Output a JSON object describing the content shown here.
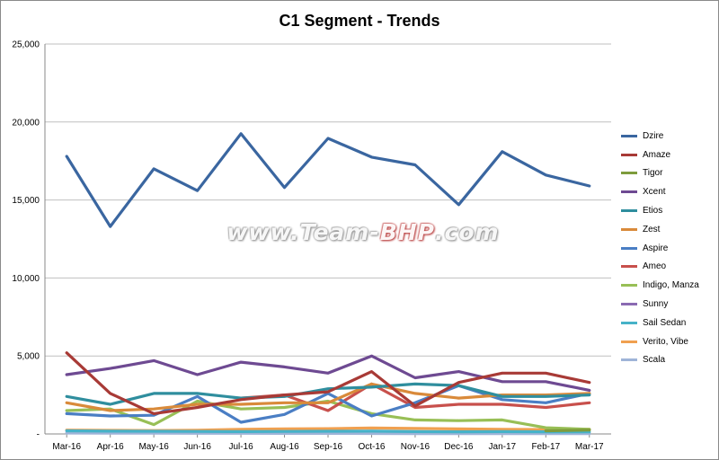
{
  "chart_data": {
    "type": "line",
    "title": "C1 Segment - Trends",
    "xlabel": "",
    "ylabel": "",
    "ylim": [
      0,
      25000
    ],
    "y_ticks": [
      "-",
      "5,000",
      "10,000",
      "15,000",
      "20,000",
      "25,000"
    ],
    "y_tick_values": [
      0,
      5000,
      10000,
      15000,
      20000,
      25000
    ],
    "grid": true,
    "legend_position": "right",
    "categories": [
      "Mar-16",
      "Apr-16",
      "May-16",
      "Jun-16",
      "Jul-16",
      "Aug-16",
      "Sep-16",
      "Oct-16",
      "Nov-16",
      "Dec-16",
      "Jan-17",
      "Feb-17",
      "Mar-17"
    ],
    "series": [
      {
        "name": "Dzire",
        "color": "#3a66a0",
        "values": [
          17800,
          13300,
          17000,
          15600,
          19250,
          15800,
          18950,
          17750,
          17250,
          14700,
          18100,
          16600,
          15900
        ]
      },
      {
        "name": "Amaze",
        "color": "#a83a36",
        "values": [
          5200,
          2600,
          1300,
          1700,
          2200,
          2500,
          2700,
          4000,
          1800,
          3300,
          3900,
          3900,
          3300
        ]
      },
      {
        "name": "Tigor",
        "color": "#7e9c3c",
        "values": [
          null,
          null,
          null,
          null,
          null,
          null,
          null,
          null,
          null,
          null,
          null,
          200,
          250
        ]
      },
      {
        "name": "Xcent",
        "color": "#6e4a92",
        "values": [
          3800,
          4200,
          4700,
          3800,
          4600,
          4300,
          3900,
          5000,
          3600,
          4000,
          3350,
          3350,
          2800
        ]
      },
      {
        "name": "Etios",
        "color": "#2f8e9e",
        "values": [
          2400,
          1900,
          2600,
          2600,
          2300,
          2400,
          2900,
          3000,
          3200,
          3100,
          2400,
          2400,
          2500
        ]
      },
      {
        "name": "Zest",
        "color": "#d98a3a",
        "values": [
          2000,
          1500,
          1600,
          1900,
          1900,
          2000,
          2000,
          3200,
          2600,
          2300,
          2500,
          2500,
          2600
        ]
      },
      {
        "name": "Aspire",
        "color": "#4a7ec4",
        "values": [
          1300,
          1150,
          1200,
          2400,
          750,
          1250,
          2600,
          1150,
          2000,
          3100,
          2200,
          2000,
          2600
        ]
      },
      {
        "name": "Ameo",
        "color": "#c8504c",
        "values": [
          null,
          null,
          null,
          null,
          2300,
          2500,
          1500,
          3200,
          1700,
          1900,
          1900,
          1700,
          2000
        ]
      },
      {
        "name": "Indigo, Manza",
        "color": "#98bf56",
        "values": [
          1500,
          1600,
          600,
          2100,
          1600,
          1700,
          2100,
          1300,
          900,
          850,
          900,
          400,
          300
        ]
      },
      {
        "name": "Sunny",
        "color": "#8a6ab2",
        "values": [
          null,
          null,
          null,
          null,
          null,
          null,
          null,
          null,
          null,
          null,
          null,
          null,
          null
        ]
      },
      {
        "name": "Sail Sedan",
        "color": "#46b2c8",
        "values": [
          200,
          180,
          170,
          160,
          150,
          160,
          170,
          180,
          150,
          140,
          150,
          140,
          130
        ]
      },
      {
        "name": "Verito, Vibe",
        "color": "#f0a050",
        "values": [
          250,
          230,
          220,
          240,
          300,
          320,
          340,
          380,
          350,
          320,
          300,
          280,
          300
        ]
      },
      {
        "name": "Scala",
        "color": "#9fb4d8",
        "values": [
          60,
          50,
          45,
          40,
          40,
          35,
          35,
          30,
          25,
          25,
          20,
          20,
          20
        ]
      }
    ]
  },
  "watermark": {
    "prefix": "www.Team-",
    "brand": "BHP",
    "suffix": ".com"
  }
}
